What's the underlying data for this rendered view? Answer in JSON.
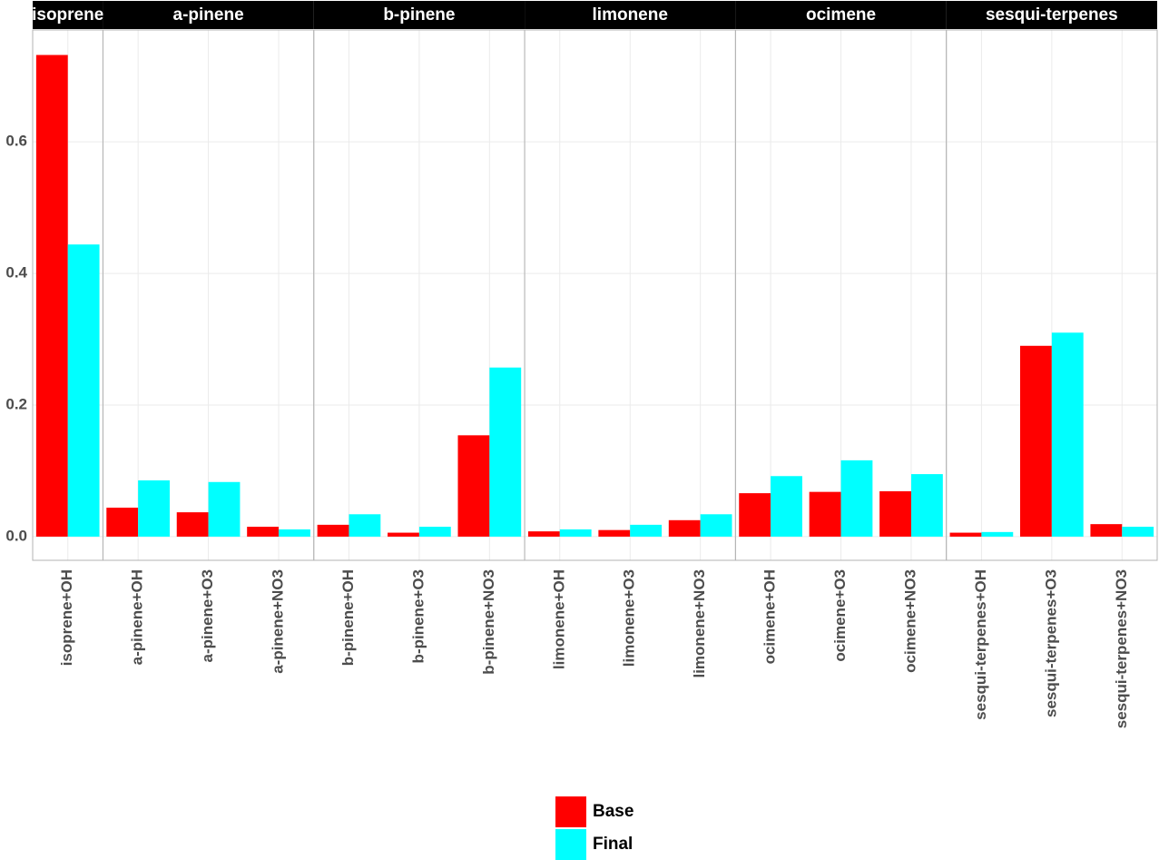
{
  "chart_data": {
    "type": "bar",
    "ylim": [
      -0.036,
      0.77
    ],
    "yticks": [
      {
        "value": 0,
        "label": "0.0"
      },
      0.2,
      0.4,
      0.6
    ],
    "grid": true,
    "legend": "bottom",
    "series": [
      {
        "name": "Base",
        "color": "#ff0000"
      },
      {
        "name": "Final",
        "color": "#00ffff"
      }
    ],
    "facets": [
      {
        "title": "isoprene",
        "categories": [
          "isoprene+OH"
        ],
        "values": [
          [
            0.732
          ],
          [
            0.444
          ]
        ]
      },
      {
        "title": "a-pinene",
        "categories": [
          "a-pinene+OH",
          "a-pinene+O3",
          "a-pinene+NO3"
        ],
        "values": [
          [
            0.044,
            0.037,
            0.015
          ],
          [
            0.0855,
            0.083,
            0.011
          ]
        ]
      },
      {
        "title": "b-pinene",
        "categories": [
          "b-pinene+OH",
          "b-pinene+O3",
          "b-pinene+NO3"
        ],
        "values": [
          [
            0.018,
            0.006,
            0.154
          ],
          [
            0.034,
            0.015,
            0.257
          ]
        ]
      },
      {
        "title": "limonene",
        "categories": [
          "limonene+OH",
          "limonene+O3",
          "limonene+NO3"
        ],
        "values": [
          [
            0.008,
            0.01,
            0.025
          ],
          [
            0.011,
            0.018,
            0.034
          ]
        ]
      },
      {
        "title": "ocimene",
        "categories": [
          "ocimene+OH",
          "ocimene+O3",
          "ocimene+NO3"
        ],
        "values": [
          [
            0.066,
            0.068,
            0.069
          ],
          [
            0.092,
            0.116,
            0.095
          ]
        ]
      },
      {
        "title": "sesqui-terpenes",
        "categories": [
          "sesqui-terpenes+OH",
          "sesqui-terpenes+O3",
          "sesqui-terpenes+NO3"
        ],
        "values": [
          [
            0.006,
            0.29,
            0.019
          ],
          [
            0.007,
            0.31,
            0.015
          ]
        ]
      }
    ]
  }
}
